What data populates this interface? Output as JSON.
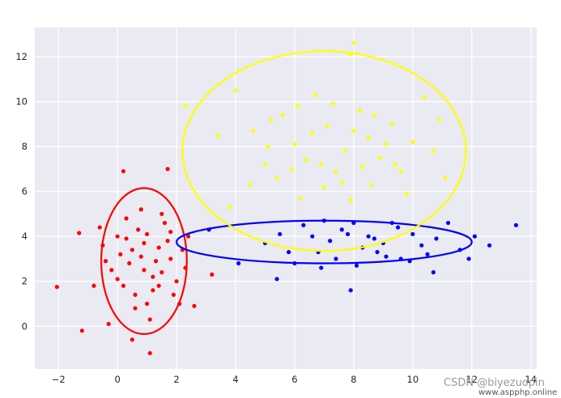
{
  "chart_data": {
    "type": "scatter",
    "title": "",
    "xlabel": "",
    "ylabel": "",
    "xlim": [
      -2.8,
      14.2
    ],
    "ylim": [
      -1.9,
      13.3
    ],
    "xticks": [
      -2,
      0,
      2,
      4,
      6,
      8,
      10,
      12,
      14
    ],
    "yticks": [
      0,
      2,
      4,
      6,
      8,
      10,
      12
    ],
    "grid": true,
    "background": "#eaeaf2",
    "clusters": [
      {
        "color": "#ff0000",
        "center": [
          0.9,
          2.9
        ],
        "radius": [
          1.45,
          3.25
        ],
        "points": [
          [
            -2.05,
            1.75
          ],
          [
            -1.2,
            -0.2
          ],
          [
            -1.3,
            4.15
          ],
          [
            -0.3,
            0.1
          ],
          [
            0.2,
            6.9
          ],
          [
            0.5,
            -0.6
          ],
          [
            1.1,
            -1.2
          ],
          [
            2.6,
            0.9
          ],
          [
            3.2,
            2.3
          ],
          [
            2.4,
            4.0
          ],
          [
            1.7,
            7.0
          ],
          [
            0.3,
            4.8
          ],
          [
            -0.5,
            3.6
          ],
          [
            0.0,
            2.1
          ],
          [
            0.6,
            1.4
          ],
          [
            1.2,
            1.6
          ],
          [
            1.5,
            2.4
          ],
          [
            0.8,
            3.1
          ],
          [
            1.0,
            4.1
          ],
          [
            1.4,
            3.5
          ],
          [
            0.4,
            2.8
          ],
          [
            0.1,
            3.2
          ],
          [
            -0.2,
            2.5
          ],
          [
            1.8,
            3.0
          ],
          [
            2.0,
            2.0
          ],
          [
            1.6,
            4.6
          ],
          [
            0.7,
            4.3
          ],
          [
            0.9,
            3.7
          ],
          [
            1.3,
            2.9
          ],
          [
            0.2,
            1.8
          ],
          [
            -0.4,
            2.9
          ],
          [
            2.2,
            3.4
          ],
          [
            1.9,
            1.4
          ],
          [
            0.6,
            0.8
          ],
          [
            1.1,
            0.3
          ],
          [
            0.3,
            3.9
          ],
          [
            1.5,
            5.0
          ],
          [
            0.8,
            5.2
          ],
          [
            1.2,
            2.2
          ],
          [
            1.7,
            3.8
          ],
          [
            2.3,
            2.6
          ],
          [
            0.0,
            4.0
          ],
          [
            -0.6,
            4.4
          ],
          [
            -0.8,
            1.8
          ],
          [
            1.0,
            1.0
          ],
          [
            0.5,
            3.4
          ],
          [
            1.8,
            4.2
          ],
          [
            2.1,
            1.0
          ],
          [
            0.9,
            2.5
          ],
          [
            1.4,
            1.8
          ]
        ]
      },
      {
        "color": "#0000ff",
        "center": [
          7.0,
          3.75
        ],
        "radius": [
          5.0,
          0.95
        ],
        "points": [
          [
            3.1,
            4.3
          ],
          [
            4.1,
            2.8
          ],
          [
            5.4,
            2.1
          ],
          [
            6.0,
            2.8
          ],
          [
            6.8,
            3.3
          ],
          [
            7.2,
            3.8
          ],
          [
            7.8,
            4.1
          ],
          [
            7.9,
            1.6
          ],
          [
            8.3,
            3.5
          ],
          [
            8.7,
            3.9
          ],
          [
            9.1,
            3.1
          ],
          [
            9.5,
            4.4
          ],
          [
            9.9,
            2.9
          ],
          [
            10.3,
            3.6
          ],
          [
            10.8,
            3.9
          ],
          [
            11.2,
            4.6
          ],
          [
            11.6,
            3.4
          ],
          [
            12.1,
            4.0
          ],
          [
            12.6,
            3.6
          ],
          [
            13.5,
            4.5
          ],
          [
            5.0,
            3.7
          ],
          [
            5.5,
            4.1
          ],
          [
            6.3,
            4.5
          ],
          [
            7.0,
            4.7
          ],
          [
            8.0,
            4.6
          ],
          [
            8.5,
            4.0
          ],
          [
            9.0,
            3.7
          ],
          [
            9.6,
            3.0
          ],
          [
            10.0,
            4.1
          ],
          [
            10.5,
            3.2
          ],
          [
            6.6,
            4.0
          ],
          [
            7.4,
            3.0
          ],
          [
            8.1,
            2.7
          ],
          [
            8.8,
            3.3
          ],
          [
            9.3,
            4.6
          ],
          [
            10.7,
            2.4
          ],
          [
            11.9,
            3.0
          ],
          [
            6.9,
            2.6
          ],
          [
            5.8,
            3.3
          ],
          [
            7.6,
            4.3
          ]
        ]
      },
      {
        "color": "#ffff00",
        "center": [
          7.0,
          7.8
        ],
        "radius": [
          4.8,
          4.45
        ],
        "points": [
          [
            8.0,
            12.6
          ],
          [
            7.9,
            12.1
          ],
          [
            2.3,
            9.8
          ],
          [
            3.4,
            8.5
          ],
          [
            4.0,
            10.5
          ],
          [
            3.8,
            5.3
          ],
          [
            4.5,
            6.3
          ],
          [
            5.0,
            7.2
          ],
          [
            5.2,
            9.2
          ],
          [
            5.6,
            9.4
          ],
          [
            6.0,
            8.1
          ],
          [
            6.4,
            7.4
          ],
          [
            6.7,
            10.3
          ],
          [
            7.1,
            8.9
          ],
          [
            7.4,
            6.9
          ],
          [
            7.7,
            7.8
          ],
          [
            8.2,
            9.6
          ],
          [
            8.5,
            8.4
          ],
          [
            8.9,
            7.5
          ],
          [
            9.3,
            9.0
          ],
          [
            9.6,
            6.9
          ],
          [
            10.0,
            8.2
          ],
          [
            10.4,
            10.2
          ],
          [
            10.7,
            7.8
          ],
          [
            11.1,
            6.6
          ],
          [
            10.9,
            9.2
          ],
          [
            6.2,
            5.7
          ],
          [
            7.9,
            5.6
          ],
          [
            8.6,
            6.3
          ],
          [
            9.8,
            5.9
          ],
          [
            5.4,
            6.6
          ],
          [
            4.6,
            8.7
          ],
          [
            6.9,
            7.2
          ],
          [
            7.3,
            9.9
          ],
          [
            8.3,
            7.1
          ],
          [
            9.1,
            8.1
          ],
          [
            7.6,
            6.4
          ],
          [
            6.6,
            8.6
          ],
          [
            5.9,
            7.0
          ],
          [
            8.7,
            9.4
          ],
          [
            9.4,
            7.2
          ],
          [
            6.1,
            9.8
          ],
          [
            7.0,
            6.2
          ],
          [
            8.0,
            8.7
          ],
          [
            5.1,
            8.0
          ]
        ]
      }
    ]
  },
  "watermark": {
    "text": "CSDN @biyezuopin",
    "subtext": "www.aspphp.online"
  }
}
